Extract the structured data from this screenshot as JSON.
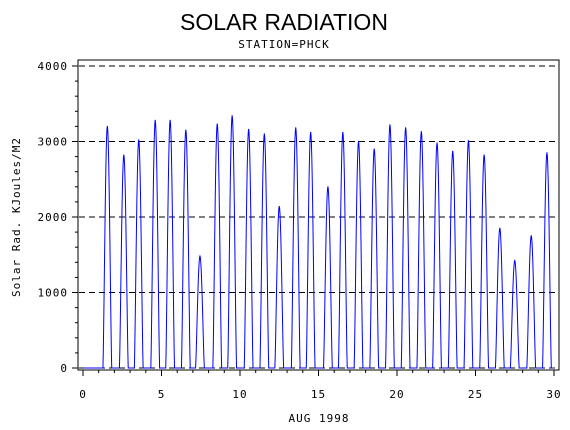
{
  "chart_data": {
    "type": "line",
    "title": "SOLAR RADIATION",
    "subtitle": "STATION=PHCK",
    "xlabel": "AUG 1998",
    "ylabel": "Solar Rad. KJoules/M2",
    "xlim": [
      0,
      30
    ],
    "ylim": [
      0,
      4000
    ],
    "x_ticks": [
      0,
      5,
      10,
      15,
      20,
      25,
      30
    ],
    "y_ticks": [
      0,
      1000,
      2000,
      3000,
      4000
    ],
    "grid": "horizontal dashed at 1000, 2000, 3000, 4000",
    "series": [
      {
        "color": "#0000ff",
        "daily_peaks": [
          {
            "day": 1,
            "x": 1.55,
            "peak": 3200
          },
          {
            "day": 2,
            "x": 2.6,
            "peak": 2820
          },
          {
            "day": 3,
            "x": 3.55,
            "peak": 3020
          },
          {
            "day": 4,
            "x": 4.6,
            "peak": 3280
          },
          {
            "day": 5,
            "x": 5.55,
            "peak": 3280
          },
          {
            "day": 6,
            "x": 6.55,
            "peak": 3150
          },
          {
            "day": 7,
            "x": 7.45,
            "peak": 1480
          },
          {
            "day": 8,
            "x": 8.55,
            "peak": 3230
          },
          {
            "day": 9,
            "x": 9.5,
            "peak": 3340
          },
          {
            "day": 10,
            "x": 10.55,
            "peak": 3160
          },
          {
            "day": 11,
            "x": 11.55,
            "peak": 3100
          },
          {
            "day": 12,
            "x": 12.5,
            "peak": 2140
          },
          {
            "day": 13,
            "x": 13.55,
            "peak": 3180
          },
          {
            "day": 14,
            "x": 14.5,
            "peak": 3120
          },
          {
            "day": 15,
            "x": 15.6,
            "peak": 2400
          },
          {
            "day": 16,
            "x": 16.55,
            "peak": 3120
          },
          {
            "day": 17,
            "x": 17.55,
            "peak": 3000
          },
          {
            "day": 18,
            "x": 18.55,
            "peak": 2900
          },
          {
            "day": 19,
            "x": 19.55,
            "peak": 3220
          },
          {
            "day": 20,
            "x": 20.55,
            "peak": 3180
          },
          {
            "day": 21,
            "x": 21.55,
            "peak": 3130
          },
          {
            "day": 22,
            "x": 22.55,
            "peak": 2980
          },
          {
            "day": 23,
            "x": 23.55,
            "peak": 2870
          },
          {
            "day": 24,
            "x": 24.55,
            "peak": 3010
          },
          {
            "day": 25,
            "x": 25.55,
            "peak": 2820
          },
          {
            "day": 26,
            "x": 26.55,
            "peak": 1850
          },
          {
            "day": 27,
            "x": 27.5,
            "peak": 1420
          },
          {
            "day": 28,
            "x": 28.55,
            "peak": 1750
          },
          {
            "day": 29,
            "x": 29.55,
            "peak": 2850
          }
        ]
      }
    ]
  }
}
